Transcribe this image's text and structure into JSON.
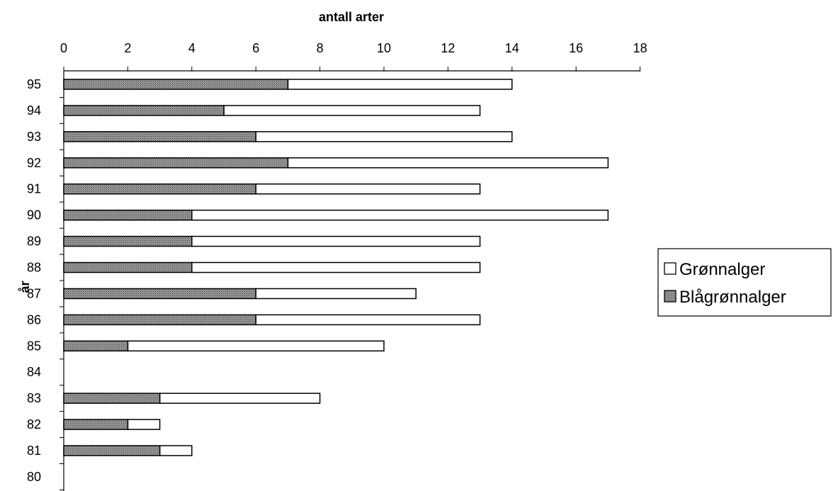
{
  "chart_data": {
    "type": "bar",
    "orientation": "horizontal",
    "stacked": true,
    "title": "",
    "xlabel": "antall arter",
    "ylabel": "år",
    "xlim": [
      0,
      18
    ],
    "x_ticks": [
      "0",
      "2",
      "4",
      "6",
      "8",
      "10",
      "12",
      "14",
      "16",
      "18"
    ],
    "x_axis_position": "top",
    "categories": [
      "95",
      "94",
      "93",
      "92",
      "91",
      "90",
      "89",
      "88",
      "87",
      "86",
      "85",
      "84",
      "83",
      "82",
      "81",
      "80"
    ],
    "series": [
      {
        "name": "Blågrønnalger",
        "color": "#8a8a8a",
        "pattern": "dotted-gray",
        "values": [
          7,
          5,
          6,
          7,
          6,
          4,
          4,
          4,
          6,
          6,
          2,
          null,
          3,
          2,
          3,
          null
        ]
      },
      {
        "name": "Grønnalger",
        "color": "#ffffff",
        "values": [
          7,
          8,
          8,
          10,
          7,
          13,
          9,
          9,
          5,
          7,
          8,
          null,
          5,
          1,
          1,
          null
        ]
      }
    ],
    "legend": {
      "placement": "right",
      "entries": [
        "Grønnalger",
        "Blågrønnalger"
      ]
    },
    "grid": false
  }
}
